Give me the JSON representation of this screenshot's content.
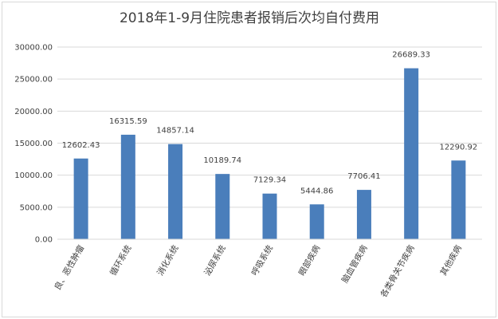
{
  "chart_data": {
    "type": "bar",
    "title": "2018年1-9月住院患者报销后次均自付费用",
    "xlabel": "",
    "ylabel": "",
    "ylim": [
      0,
      30000
    ],
    "yticks": [
      "0.00",
      "5000.00",
      "10000.00",
      "15000.00",
      "20000.00",
      "25000.00",
      "30000.00"
    ],
    "grid": true,
    "categories": [
      "良、恶性肿瘤",
      "循环系统",
      "消化系统",
      "泌尿系统",
      "呼吸系统",
      "眼部疾病",
      "脑血管疾病",
      "各类骨关节疾病",
      "其他疾病"
    ],
    "values": [
      12602.43,
      16315.59,
      14857.14,
      10189.74,
      7129.34,
      5444.86,
      7706.41,
      26689.33,
      12290.92
    ],
    "value_labels": [
      "12602.43",
      "16315.59",
      "14857.14",
      "10189.74",
      "7129.34",
      "5444.86",
      "7706.41",
      "26689.33",
      "12290.92"
    ],
    "bar_color": "#4a7ebb"
  }
}
